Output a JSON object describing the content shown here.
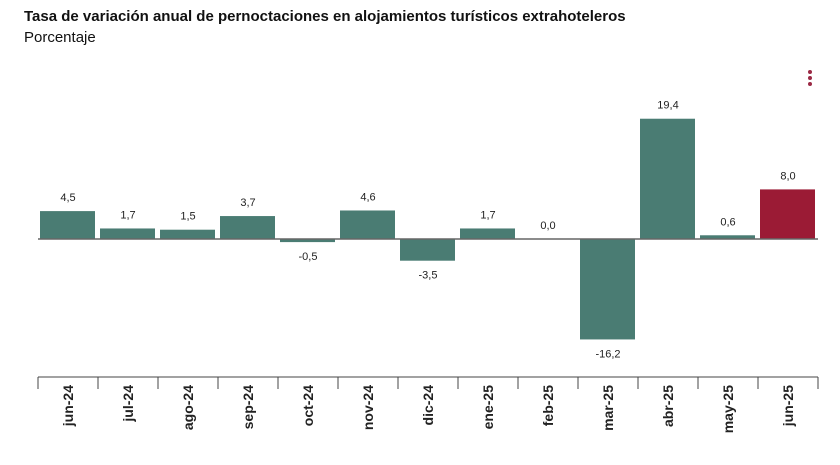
{
  "title": "Tasa de variación anual de pernoctaciones en alojamientos turísticos extrahoteleros",
  "subtitle": "Porcentaje",
  "colors": {
    "bar": "#4a7c73",
    "highlight": "#9b1b35",
    "menu": "#9b2a45"
  },
  "menu_icon": "vertical-dots-icon",
  "chart_data": {
    "type": "bar",
    "categories": [
      "jun-24",
      "jul-24",
      "ago-24",
      "sep-24",
      "oct-24",
      "nov-24",
      "dic-24",
      "ene-25",
      "feb-25",
      "mar-25",
      "abr-25",
      "may-25",
      "jun-25"
    ],
    "values": [
      4.5,
      1.7,
      1.5,
      3.7,
      -0.5,
      4.6,
      -3.5,
      1.7,
      0.0,
      -16.2,
      19.4,
      0.6,
      8.0
    ],
    "labels": [
      "4,5",
      "1,7",
      "1,5",
      "3,7",
      "-0,5",
      "4,6",
      "-3,5",
      "1,7",
      "0,0",
      "-16,2",
      "19,4",
      "0,6",
      "8,0"
    ],
    "title": "Tasa de variación anual de pernoctaciones en alojamientos turísticos extrahoteleros",
    "subtitle": "Porcentaje",
    "xlabel": "",
    "ylabel": "",
    "highlight_index": 12,
    "grid": false,
    "legend": "none"
  }
}
